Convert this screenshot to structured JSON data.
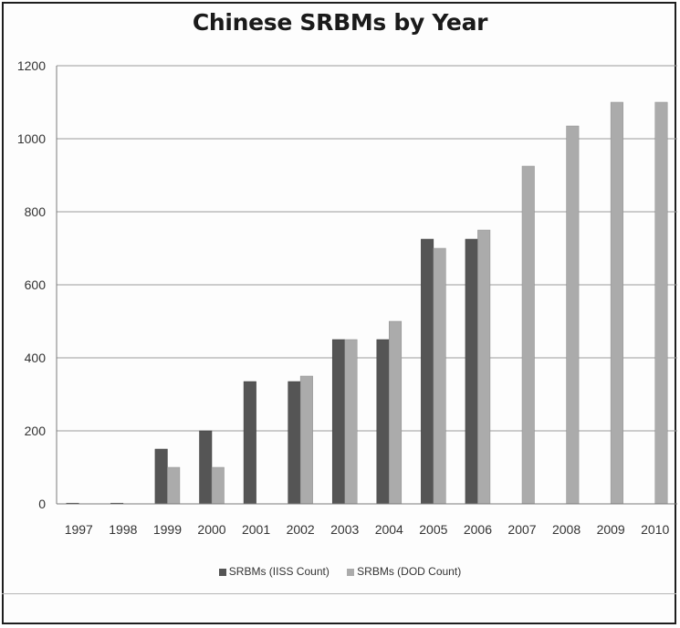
{
  "chart_data": {
    "type": "bar",
    "title": "Chinese SRBMs by Year",
    "categories": [
      "1997",
      "1998",
      "1999",
      "2000",
      "2001",
      "2002",
      "2003",
      "2004",
      "2005",
      "2006",
      "2007",
      "2008",
      "2009",
      "2010"
    ],
    "series": [
      {
        "name": "SRBMs (IISS Count)",
        "color": "#555555",
        "values": [
          2,
          2,
          150,
          200,
          335,
          335,
          450,
          450,
          725,
          725,
          null,
          null,
          null,
          null
        ]
      },
      {
        "name": "SRBMs (DOD Count)",
        "color": "#ababab",
        "values": [
          null,
          null,
          100,
          100,
          null,
          350,
          450,
          500,
          700,
          750,
          925,
          1035,
          1100,
          1100
        ]
      }
    ],
    "ylim": [
      0,
      1200
    ],
    "yticks": [
      0,
      200,
      400,
      600,
      800,
      1000,
      1200
    ],
    "xlabel": "",
    "ylabel": "",
    "grid": true,
    "legend_position": "bottom"
  }
}
